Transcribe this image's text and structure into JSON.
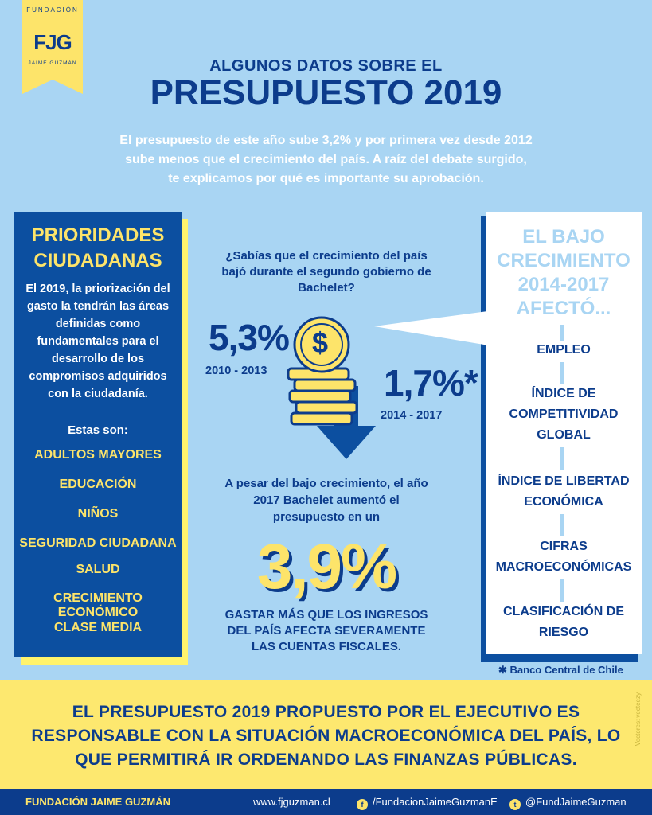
{
  "logo": {
    "top": "FUNDACIÓN",
    "mark": "FJG",
    "bottom": "JAIME GUZMÁN"
  },
  "header": {
    "kicker": "ALGUNOS DATOS SOBRE EL",
    "title": "PRESUPUESTO 2019",
    "intro": "El presupuesto de este año sube 3,2% y por primera vez desde 2012 sube menos que el crecimiento del país. A raíz del debate surgido, te explicamos por qué es importante su aprobación."
  },
  "left_panel": {
    "title": "PRIORIDADES CIUDADANAS",
    "body": "El 2019, la priorización del gasto la tendrán las áreas definidas como fundamentales para el desarrollo de los compromisos adquiridos con la ciudadanía.",
    "estas": "Estas son:",
    "items": [
      "ADULTOS MAYORES",
      "EDUCACIÓN",
      "NIÑOS",
      "SEGURIDAD CIUDADANA",
      "SALUD",
      "CRECIMIENTO ECONÓMICO",
      "CLASE MEDIA"
    ]
  },
  "center": {
    "question": "¿Sabías que el crecimiento del país bajó durante el segundo gobierno de Bachelet?",
    "value1": "5,3%",
    "period1": "2010 - 2013",
    "value2": "1,7%*",
    "period2": "2014 - 2017",
    "coin_symbol": "$",
    "pesar": "A pesar del bajo crecimiento, el año 2017 Bachelet aumentó el presupuesto en un",
    "big_value": "3,9%",
    "gastar": "GASTAR MÁS QUE LOS INGRESOS DEL PAÍS AFECTA SEVERAMENTE LAS CUENTAS FISCALES."
  },
  "right_panel": {
    "title": "EL BAJO CRECIMIENTO 2014-2017 AFECTÓ...",
    "items": [
      "EMPLEO",
      "ÍNDICE DE COMPETITIVIDAD GLOBAL",
      "ÍNDICE DE LIBERTAD ECONÓMICA",
      "CIFRAS MACROECONÓMICAS",
      "CLASIFICACIÓN DE RIESGO"
    ],
    "source": "✱ Banco Central de Chile"
  },
  "band": {
    "text": "EL PRESUPUESTO 2019 PROPUESTO POR EL EJECUTIVO ES RESPONSABLE CON LA SITUACIÓN MACROECONÓMICA DEL PAÍS, LO QUE PERMITIRÁ IR ORDENANDO LAS FINANZAS PÚBLICAS.",
    "credit": "Vectores: vecteezy"
  },
  "footer": {
    "org": "FUNDACIÓN JAIME GUZMÁN",
    "web": "www.fjguzman.cl",
    "facebook": "/FundacionJaimeGuzmanE",
    "twitter": "@FundJaimeGuzman"
  },
  "colors": {
    "navy": "#0c3c8c",
    "blue": "#0c4fa0",
    "yellow": "#fde46a",
    "sky": "#a9d5f3"
  }
}
